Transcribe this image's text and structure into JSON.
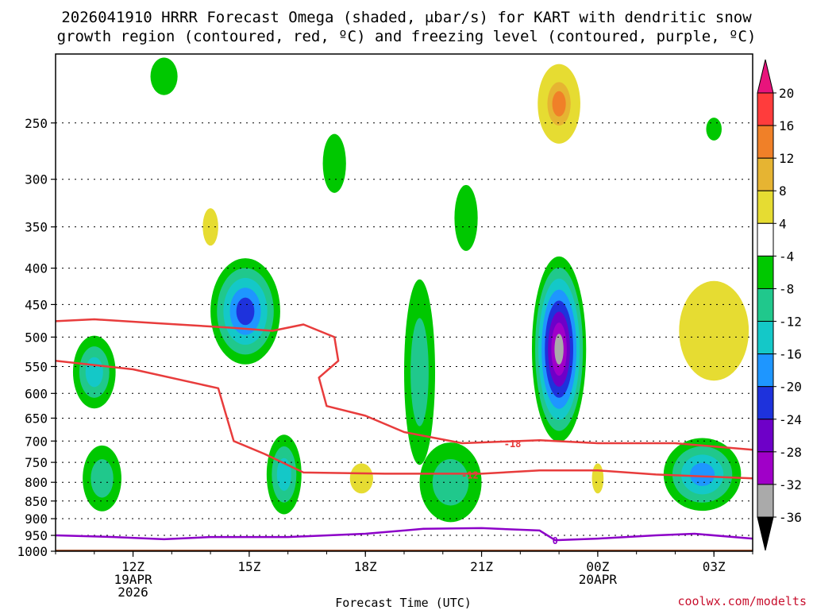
{
  "chart_data": {
    "type": "contour",
    "title_line1": "2026041910 HRRR Forecast Omega (shaded, μbar/s) for KART with dendritic snow",
    "title_line2": "growth region (contoured, red, ºC) and freezing level (contoured, purple, ºC)",
    "xlabel": "Forecast Time (UTC)",
    "credit": "coolwx.com/modelts",
    "ylabel": "",
    "y_scale": "log-pressure",
    "ylim": [
      1000,
      200
    ],
    "y_ticks": [
      250,
      300,
      350,
      400,
      450,
      500,
      550,
      600,
      650,
      700,
      750,
      800,
      850,
      900,
      950,
      1000
    ],
    "x_ticks": [
      {
        "hour": 12,
        "label": "12Z",
        "sub1": "19APR",
        "sub2": "2026"
      },
      {
        "hour": 15,
        "label": "15Z",
        "sub1": "",
        "sub2": ""
      },
      {
        "hour": 18,
        "label": "18Z",
        "sub1": "",
        "sub2": ""
      },
      {
        "hour": 21,
        "label": "21Z",
        "sub1": "",
        "sub2": ""
      },
      {
        "hour": 24,
        "label": "00Z",
        "sub1": "20APR",
        "sub2": ""
      },
      {
        "hour": 27,
        "label": "03Z",
        "sub1": "",
        "sub2": ""
      }
    ],
    "xlim": [
      10,
      28
    ],
    "grid": true,
    "colorbar": {
      "levels": [
        20,
        16,
        12,
        8,
        4,
        -4,
        -8,
        -12,
        -16,
        -20,
        -24,
        -28,
        -32,
        -36
      ],
      "colors": [
        "#ff3c3c",
        "#f08028",
        "#e6b432",
        "#e6dc32",
        "#ffffff",
        "#00c800",
        "#20c88c",
        "#14c8c8",
        "#1e96ff",
        "#1e32dc",
        "#6e00c8",
        "#a000c8",
        "#aaaaaa"
      ],
      "top_color": "#e8147c",
      "bottom_color": "#000000"
    },
    "omega_areas": [
      {
        "x": 11.0,
        "p": 560,
        "rx": 0.55,
        "ry": 0.5,
        "levels": [
          -4,
          -8,
          -12
        ]
      },
      {
        "x": 11.2,
        "p": 790,
        "rx": 0.5,
        "ry": 0.45,
        "levels": [
          -4,
          -8
        ]
      },
      {
        "x": 12.8,
        "p": 215,
        "rx": 0.35,
        "ry": 0.25,
        "levels": [
          -4
        ]
      },
      {
        "x": 14.0,
        "p": 350,
        "rx": 0.2,
        "ry": 0.25,
        "levels": [
          4
        ]
      },
      {
        "x": 14.9,
        "p": 460,
        "rx": 0.9,
        "ry": 0.75,
        "levels": [
          -4,
          -8,
          -12,
          -16,
          -20
        ]
      },
      {
        "x": 15.9,
        "p": 780,
        "rx": 0.45,
        "ry": 0.55,
        "levels": [
          -4,
          -8,
          -12
        ]
      },
      {
        "x": 17.2,
        "p": 285,
        "rx": 0.3,
        "ry": 0.4,
        "levels": [
          -4
        ]
      },
      {
        "x": 17.9,
        "p": 790,
        "rx": 0.3,
        "ry": 0.2,
        "levels": [
          4,
          8
        ]
      },
      {
        "x": 19.4,
        "p": 560,
        "rx": 0.4,
        "ry": 1.4,
        "levels": [
          -4,
          -8
        ]
      },
      {
        "x": 20.2,
        "p": 800,
        "rx": 0.8,
        "ry": 0.55,
        "levels": [
          -4,
          -8
        ]
      },
      {
        "x": 20.6,
        "p": 340,
        "rx": 0.3,
        "ry": 0.45,
        "levels": [
          -4
        ]
      },
      {
        "x": 23.0,
        "p": 520,
        "rx": 0.7,
        "ry": 1.4,
        "levels": [
          -4,
          -8,
          -12,
          -16,
          -20,
          -24,
          -28,
          -32
        ]
      },
      {
        "x": 23.0,
        "p": 235,
        "rx": 0.55,
        "ry": 0.55,
        "levels": [
          4,
          8,
          12,
          16
        ]
      },
      {
        "x": 24.0,
        "p": 790,
        "rx": 0.15,
        "ry": 0.2,
        "levels": [
          4,
          8
        ]
      },
      {
        "x": 26.7,
        "p": 780,
        "rx": 1.0,
        "ry": 0.5,
        "levels": [
          -4,
          -8,
          -12,
          -16
        ]
      },
      {
        "x": 27.0,
        "p": 490,
        "rx": 0.9,
        "ry": 0.7,
        "levels": [
          4,
          8
        ]
      },
      {
        "x": 27.0,
        "p": 255,
        "rx": 0.2,
        "ry": 0.15,
        "levels": [
          -4
        ]
      }
    ],
    "contours": [
      {
        "name": "-12",
        "color": "#e83c3c",
        "label": "-12",
        "label_at": {
          "x": 20.7,
          "p": 780
        },
        "points": [
          [
            10,
            540
          ],
          [
            12,
            555
          ],
          [
            14.2,
            590
          ],
          [
            14.6,
            700
          ],
          [
            15.4,
            730
          ],
          [
            16.4,
            775
          ],
          [
            18.5,
            778
          ],
          [
            21.0,
            778
          ],
          [
            22.5,
            770
          ],
          [
            24.0,
            770
          ],
          [
            25.5,
            780
          ],
          [
            28.0,
            790
          ]
        ]
      },
      {
        "name": "-18",
        "color": "#e83c3c",
        "label": "-18",
        "label_at": {
          "x": 21.8,
          "p": 705
        },
        "points": [
          [
            10,
            475
          ],
          [
            11,
            472
          ],
          [
            12.6,
            478
          ],
          [
            14.5,
            485
          ],
          [
            15.6,
            490
          ],
          [
            16.4,
            480
          ],
          [
            17.2,
            500
          ],
          [
            17.3,
            540
          ],
          [
            16.8,
            570
          ],
          [
            17.0,
            625
          ],
          [
            18.0,
            645
          ],
          [
            19.0,
            680
          ],
          [
            20.5,
            705
          ],
          [
            22.5,
            698
          ],
          [
            24.0,
            705
          ],
          [
            26.0,
            705
          ],
          [
            28.0,
            720
          ]
        ]
      },
      {
        "name": "0",
        "color": "#8c00c8",
        "label": "0",
        "label_at": {
          "x": 22.9,
          "p": 965
        },
        "points": [
          [
            10,
            950
          ],
          [
            11.5,
            955
          ],
          [
            12.8,
            962
          ],
          [
            14.0,
            955
          ],
          [
            16.0,
            955
          ],
          [
            18.0,
            945
          ],
          [
            19.5,
            930
          ],
          [
            21.0,
            928
          ],
          [
            22.5,
            935
          ],
          [
            22.9,
            965
          ],
          [
            24.0,
            960
          ],
          [
            25.5,
            950
          ],
          [
            26.5,
            945
          ],
          [
            28.0,
            960
          ]
        ]
      }
    ],
    "terrain": {
      "pressure": 1000,
      "color": "#a0522d"
    }
  }
}
